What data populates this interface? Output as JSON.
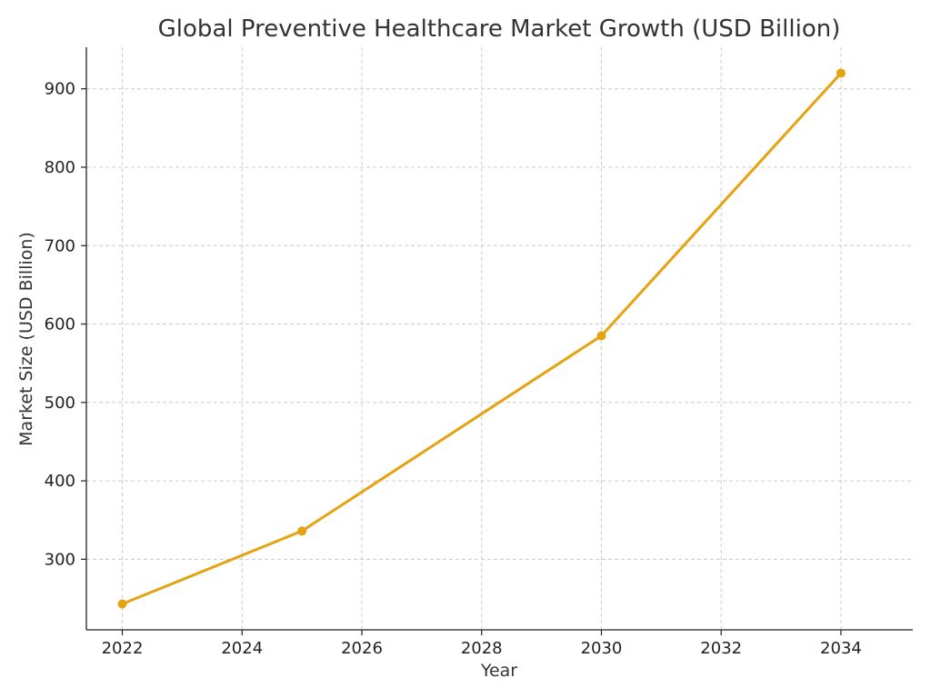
{
  "chart_data": {
    "type": "line",
    "title": "Global Preventive Healthcare Market Growth (USD Billion)",
    "xlabel": "Year",
    "ylabel": "Market Size (USD Billion)",
    "x": [
      2022,
      2025,
      2030,
      2034
    ],
    "series": [
      {
        "values": [
          243,
          336,
          585,
          920
        ]
      }
    ],
    "xlim": [
      2021.4,
      2035.2
    ],
    "ylim": [
      210,
      953
    ],
    "xticks": [
      2022,
      2024,
      2026,
      2028,
      2030,
      2032,
      2034
    ],
    "yticks": [
      300,
      400,
      500,
      600,
      700,
      800,
      900
    ],
    "grid": true,
    "line_color": "#E5A211",
    "marker": "circle"
  }
}
